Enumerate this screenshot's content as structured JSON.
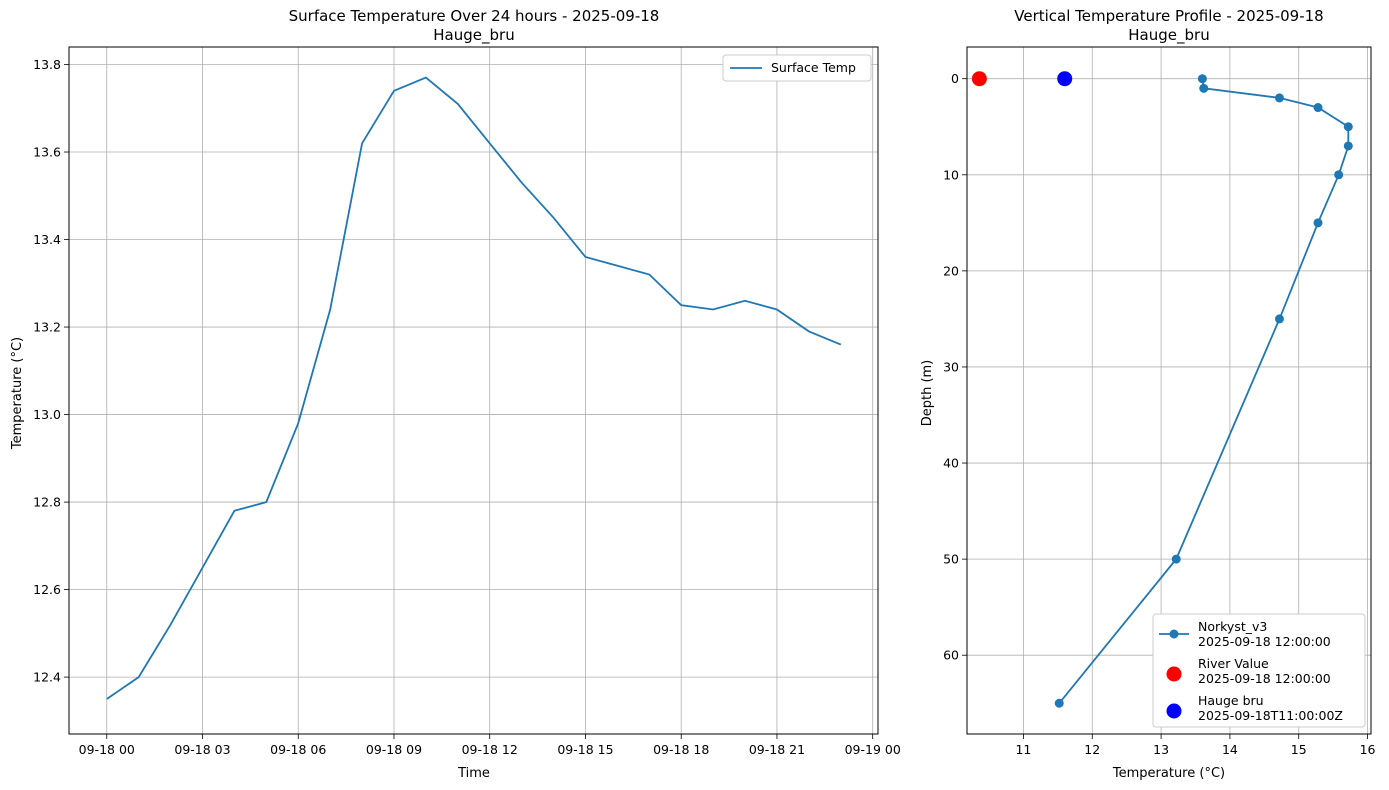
{
  "chart_data": [
    {
      "type": "line",
      "title": "Surface Temperature Over 24 hours - 2025-09-18",
      "subtitle": "Hauge_bru",
      "xlabel": "Time",
      "ylabel": "Temperature (°C)",
      "grid": true,
      "legend_position": "upper right",
      "x_tick_labels": [
        "09-18 00",
        "09-18 03",
        "09-18 06",
        "09-18 09",
        "09-18 12",
        "09-18 15",
        "09-18 18",
        "09-18 21",
        "09-19 00"
      ],
      "y_tick_labels": [
        "12.4",
        "12.6",
        "12.8",
        "13.0",
        "13.2",
        "13.4",
        "13.6",
        "13.8"
      ],
      "xlim": [
        "2025-09-17 22:49",
        "2025-09-19 00:10"
      ],
      "ylim": [
        12.27,
        13.84
      ],
      "series": [
        {
          "name": "Surface Temp",
          "color": "#1f77b4",
          "x": [
            "2025-09-18 00:00",
            "2025-09-18 01:00",
            "2025-09-18 02:00",
            "2025-09-18 03:00",
            "2025-09-18 04:00",
            "2025-09-18 05:00",
            "2025-09-18 06:00",
            "2025-09-18 07:00",
            "2025-09-18 08:00",
            "2025-09-18 09:00",
            "2025-09-18 10:00",
            "2025-09-18 11:00",
            "2025-09-18 12:00",
            "2025-09-18 13:00",
            "2025-09-18 14:00",
            "2025-09-18 15:00",
            "2025-09-18 16:00",
            "2025-09-18 17:00",
            "2025-09-18 18:00",
            "2025-09-18 19:00",
            "2025-09-18 20:00",
            "2025-09-18 21:00",
            "2025-09-18 22:00",
            "2025-09-18 23:00"
          ],
          "y": [
            12.35,
            12.4,
            12.52,
            12.65,
            12.78,
            12.8,
            12.98,
            13.24,
            13.62,
            13.74,
            13.77,
            13.71,
            13.62,
            13.53,
            13.45,
            13.36,
            13.34,
            13.32,
            13.25,
            13.24,
            13.26,
            13.24,
            13.19,
            13.16
          ]
        }
      ]
    },
    {
      "type": "line",
      "title": "Vertical Temperature Profile - 2025-09-18",
      "subtitle": "Hauge_bru",
      "xlabel": "Temperature (°C)",
      "ylabel": "Depth (m)",
      "grid": true,
      "y_inverted": true,
      "legend_position": "lower right",
      "x_tick_labels": [
        "11",
        "12",
        "13",
        "14",
        "15",
        "16"
      ],
      "y_tick_labels": [
        "0",
        "10",
        "20",
        "30",
        "40",
        "50",
        "60"
      ],
      "xlim": [
        10.18,
        16.05
      ],
      "ylim": [
        68.2,
        -3.3
      ],
      "series": [
        {
          "name": "Norkyst_v3",
          "time_label": "2025-09-18 12:00:00",
          "color": "#1f77b4",
          "marker": "o",
          "x": [
            13.6,
            13.62,
            14.72,
            15.28,
            15.72,
            15.72,
            15.58,
            15.28,
            14.72,
            13.22,
            11.52
          ],
          "y": [
            0,
            1,
            2,
            3,
            5,
            7,
            10,
            15,
            25,
            50,
            65
          ]
        },
        {
          "name": "River Value",
          "time_label": "2025-09-18 12:00:00",
          "color": "#ff0000",
          "marker": "o",
          "x": [
            10.36
          ],
          "y": [
            0
          ]
        },
        {
          "name": "Hauge bru",
          "time_label": "2025-09-18T11:00:00Z",
          "color": "#0000ff",
          "marker": "o",
          "x": [
            11.6
          ],
          "y": [
            0
          ]
        }
      ]
    }
  ]
}
